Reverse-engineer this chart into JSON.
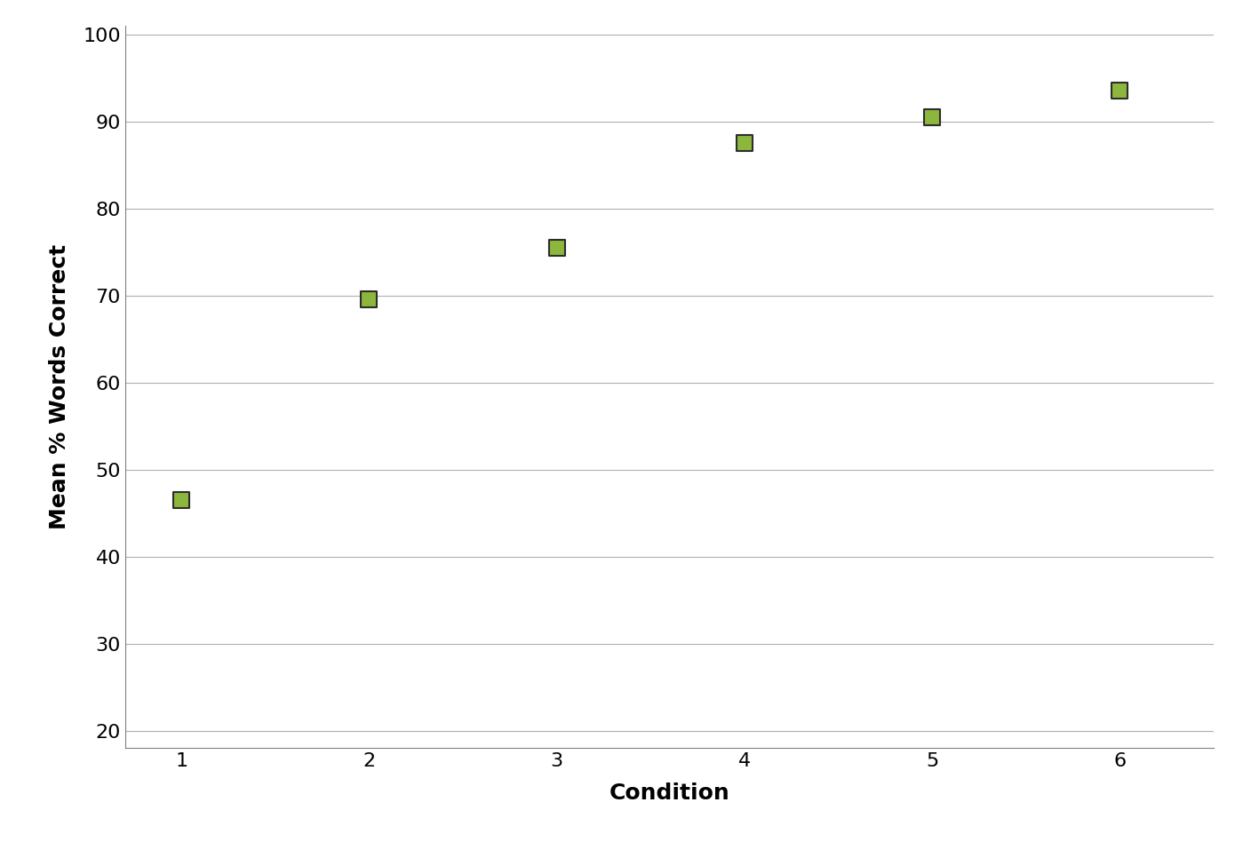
{
  "x": [
    1,
    2,
    3,
    4,
    5,
    6
  ],
  "y": [
    46.5,
    69.5,
    75.5,
    87.5,
    90.5,
    93.5
  ],
  "xlabel": "Condition",
  "ylabel": "Mean % Words Correct",
  "xlim": [
    0.7,
    6.5
  ],
  "ylim": [
    18,
    101
  ],
  "yticks": [
    20,
    30,
    40,
    50,
    60,
    70,
    80,
    90,
    100
  ],
  "xticks": [
    1,
    2,
    3,
    4,
    5,
    6
  ],
  "marker_face_color": "#8db63c",
  "marker_edge_color": "#2d2d2d",
  "marker_size": 180,
  "background_color": "#ffffff",
  "plot_bg_color": "#ffffff",
  "grid_color": "#b0b0b0",
  "xlabel_fontsize": 18,
  "ylabel_fontsize": 18,
  "tick_fontsize": 16,
  "label_fontweight": "bold",
  "spine_color": "#808080"
}
